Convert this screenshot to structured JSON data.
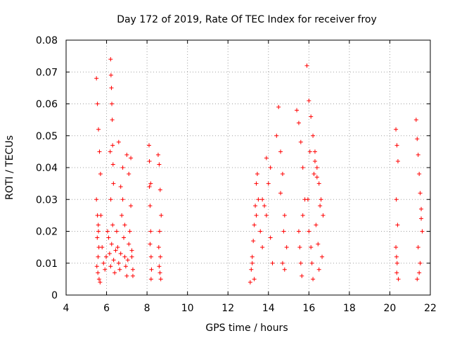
{
  "chart_data": {
    "type": "scatter",
    "title": "Day 172 of 2019, Rate Of TEC Index for receiver froy",
    "xlabel": "GPS time / hours",
    "ylabel": "ROTI / TECUs",
    "xlim": [
      4,
      22
    ],
    "ylim": [
      0,
      0.08
    ],
    "xticks": [
      4,
      6,
      8,
      10,
      12,
      14,
      16,
      18,
      20,
      22
    ],
    "xtick_labels": [
      "4",
      "6",
      "8",
      "10",
      "12",
      "14",
      "16",
      "18",
      "20",
      "22"
    ],
    "yticks": [
      0,
      0.01,
      0.02,
      0.03,
      0.04,
      0.05,
      0.06,
      0.07,
      0.08
    ],
    "ytick_labels": [
      "0",
      "0.01",
      "0.02",
      "0.03",
      "0.04",
      "0.05",
      "0.06",
      "0.07",
      "0.08"
    ],
    "grid": true,
    "marker": "+",
    "color": "#ff0000",
    "series": [
      {
        "name": "ROTI",
        "x": [
          5.5,
          5.55,
          5.6,
          5.65,
          5.7,
          5.5,
          5.55,
          5.6,
          5.62,
          5.58,
          5.52,
          5.57,
          5.63,
          5.68,
          5.54,
          5.59,
          5.72,
          5.78,
          5.85,
          5.92,
          5.98,
          6.05,
          6.1,
          6.15,
          6.2,
          6.25,
          6.3,
          6.35,
          6.4,
          6.45,
          6.2,
          6.22,
          6.24,
          6.26,
          6.28,
          6.3,
          6.32,
          6.34,
          6.18,
          6.21,
          6.5,
          6.55,
          6.6,
          6.65,
          6.7,
          6.75,
          6.8,
          6.85,
          6.9,
          6.95,
          7.0,
          7.05,
          7.1,
          7.15,
          7.2,
          7.25,
          7.3,
          6.6,
          6.7,
          6.8,
          6.9,
          7.0,
          7.1,
          7.2,
          7.25,
          7.3,
          8.1,
          8.12,
          8.15,
          8.18,
          8.2,
          8.22,
          8.15,
          8.18,
          8.12,
          8.2,
          8.55,
          8.6,
          8.65,
          8.7,
          8.62,
          8.58,
          8.66,
          8.6,
          8.64,
          8.68,
          13.1,
          13.15,
          13.2,
          13.25,
          13.3,
          13.35,
          13.4,
          13.45,
          13.5,
          13.2,
          13.3,
          13.4,
          13.6,
          13.7,
          13.8,
          13.9,
          14.0,
          14.1,
          14.2,
          13.7,
          13.9,
          14.1,
          14.4,
          14.5,
          14.6,
          14.7,
          14.8,
          14.9,
          14.6,
          14.7,
          14.75,
          14.8,
          15.4,
          15.5,
          15.6,
          15.7,
          15.8,
          15.5,
          15.55,
          15.6,
          15.65,
          15.7,
          15.9,
          16.0,
          16.1,
          16.2,
          16.3,
          16.4,
          16.5,
          16.6,
          16.7,
          16.0,
          16.1,
          16.15,
          16.2,
          15.95,
          16.05,
          16.25,
          16.35,
          16.45,
          16.55,
          16.65,
          16.5,
          16.4,
          16.3,
          20.3,
          20.35,
          20.4,
          20.32,
          20.38,
          20.3,
          20.36,
          20.34,
          20.42,
          20.33,
          21.3,
          21.35,
          21.4,
          21.45,
          21.5,
          21.55,
          21.6,
          21.4,
          21.5,
          21.45,
          21.35,
          21.55
        ],
        "y": [
          0.068,
          0.06,
          0.052,
          0.045,
          0.038,
          0.03,
          0.025,
          0.02,
          0.015,
          0.012,
          0.009,
          0.007,
          0.005,
          0.004,
          0.018,
          0.022,
          0.025,
          0.015,
          0.01,
          0.008,
          0.012,
          0.02,
          0.018,
          0.013,
          0.009,
          0.016,
          0.022,
          0.011,
          0.007,
          0.014,
          0.074,
          0.069,
          0.065,
          0.06,
          0.055,
          0.047,
          0.041,
          0.035,
          0.045,
          0.03,
          0.02,
          0.015,
          0.01,
          0.008,
          0.013,
          0.025,
          0.03,
          0.018,
          0.012,
          0.009,
          0.006,
          0.011,
          0.016,
          0.02,
          0.028,
          0.014,
          0.008,
          0.048,
          0.034,
          0.04,
          0.022,
          0.044,
          0.038,
          0.043,
          0.012,
          0.006,
          0.047,
          0.034,
          0.028,
          0.02,
          0.012,
          0.008,
          0.016,
          0.035,
          0.042,
          0.005,
          0.044,
          0.041,
          0.033,
          0.025,
          0.02,
          0.015,
          0.012,
          0.009,
          0.007,
          0.005,
          0.004,
          0.008,
          0.012,
          0.017,
          0.022,
          0.028,
          0.035,
          0.038,
          0.03,
          0.01,
          0.005,
          0.025,
          0.02,
          0.015,
          0.028,
          0.043,
          0.035,
          0.018,
          0.01,
          0.03,
          0.025,
          0.04,
          0.05,
          0.059,
          0.045,
          0.038,
          0.025,
          0.015,
          0.032,
          0.01,
          0.02,
          0.008,
          0.058,
          0.054,
          0.048,
          0.04,
          0.03,
          0.02,
          0.015,
          0.01,
          0.006,
          0.025,
          0.072,
          0.061,
          0.056,
          0.05,
          0.045,
          0.04,
          0.035,
          0.03,
          0.025,
          0.02,
          0.015,
          0.01,
          0.005,
          0.03,
          0.045,
          0.038,
          0.022,
          0.016,
          0.028,
          0.012,
          0.008,
          0.037,
          0.042,
          0.052,
          0.047,
          0.042,
          0.03,
          0.022,
          0.015,
          0.01,
          0.007,
          0.005,
          0.012,
          0.055,
          0.049,
          0.044,
          0.038,
          0.032,
          0.027,
          0.02,
          0.015,
          0.01,
          0.007,
          0.005,
          0.024
        ]
      }
    ]
  }
}
